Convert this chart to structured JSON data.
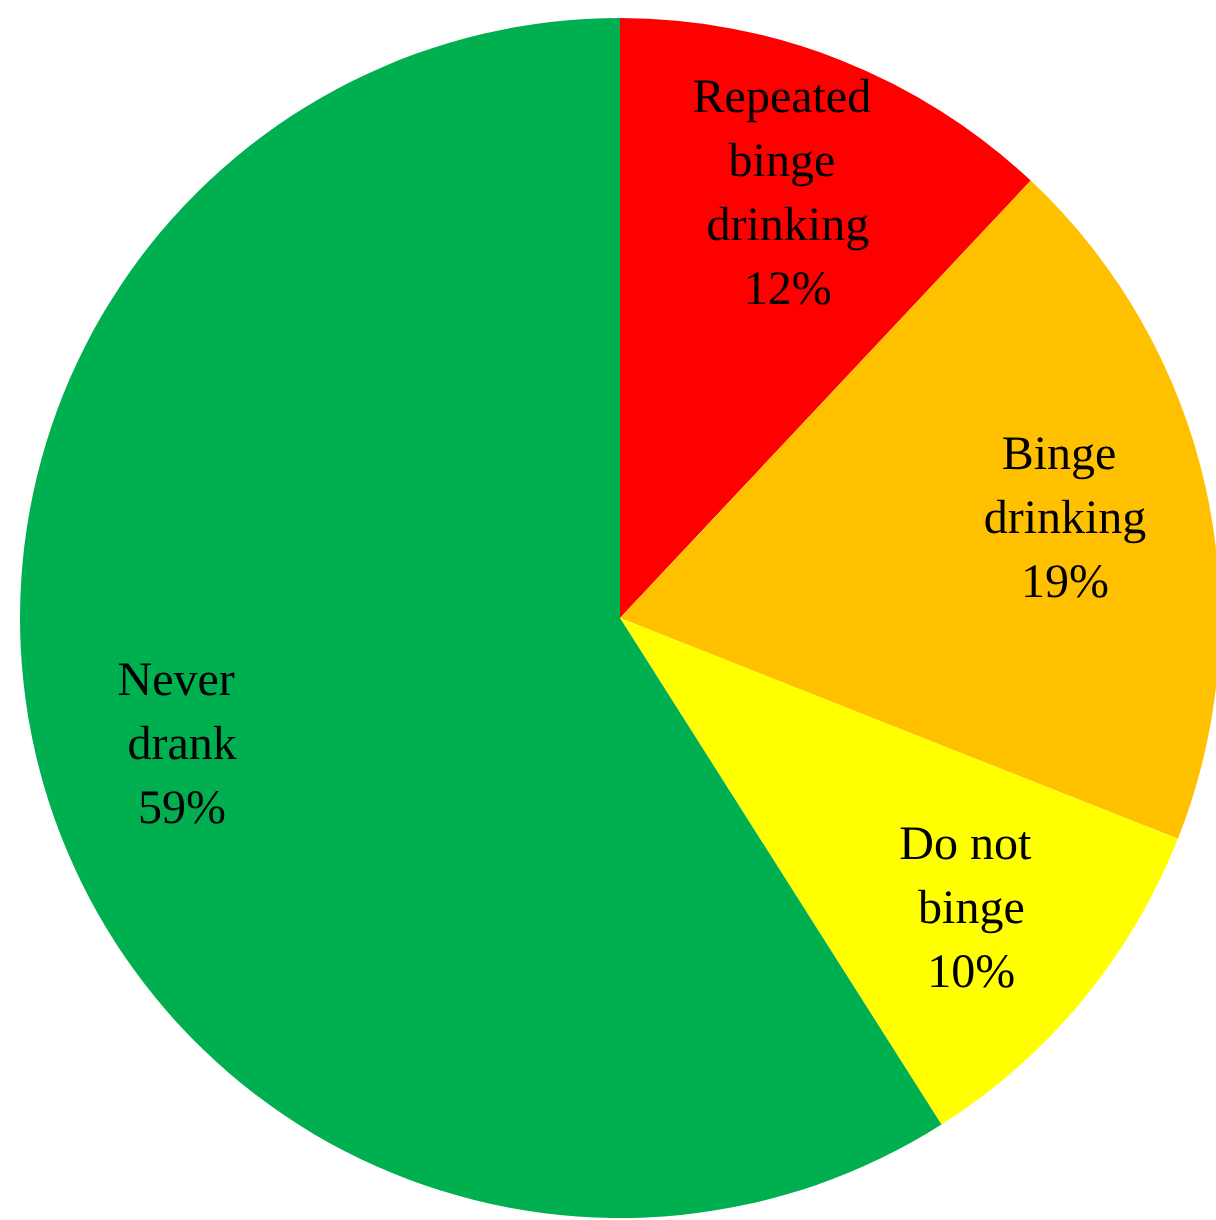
{
  "chart_data": {
    "type": "pie",
    "categories": [
      "Repeated binge drinking",
      "Binge drinking",
      "Do not binge",
      "Never drank"
    ],
    "values": [
      12,
      19,
      10,
      59
    ],
    "colors": [
      "#ff0000",
      "#ffc000",
      "#ffff00",
      "#00b050"
    ],
    "value_labels": [
      "12%",
      "19%",
      "10%",
      "59%"
    ]
  }
}
